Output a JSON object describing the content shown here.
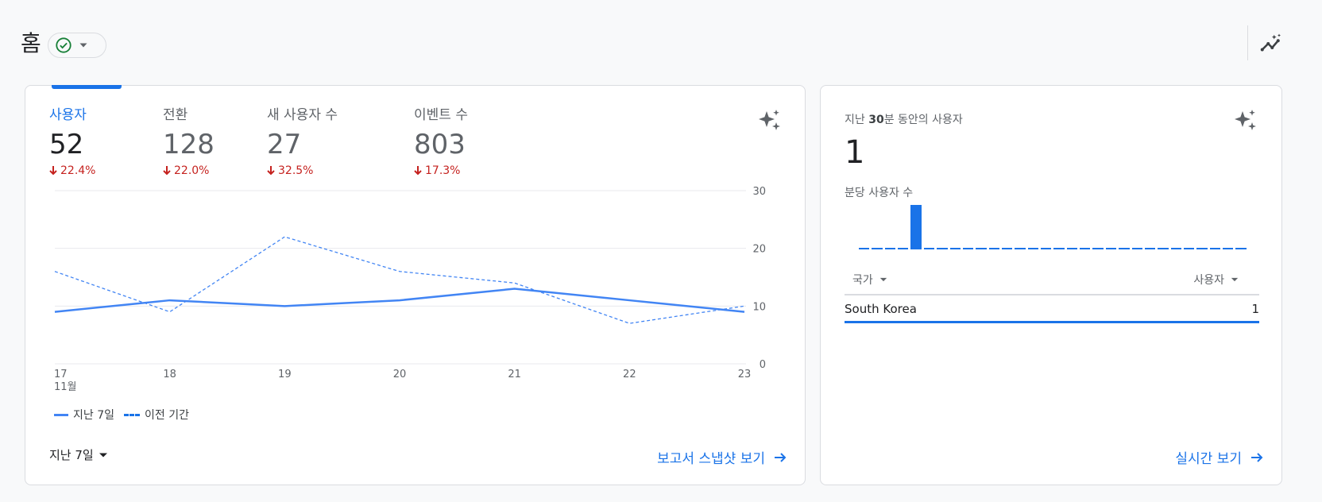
{
  "header": {
    "title": "홈"
  },
  "colors": {
    "accent": "#1a73e8",
    "negative": "#c5221f",
    "status_ok": "#188038"
  },
  "icons": {
    "status": "check-circle-icon",
    "chevron": "caret-down-icon",
    "insights": "insights-icon",
    "sparkle": "sparkle-icon",
    "arrow": "arrow-forward-icon",
    "delta": "arrow-down-icon"
  },
  "metrics": [
    {
      "label": "사용자",
      "value": "52",
      "delta": "22.4%",
      "active": true
    },
    {
      "label": "전환",
      "value": "128",
      "delta": "22.0%"
    },
    {
      "label": "새 사용자 수",
      "value": "27",
      "delta": "32.5%"
    },
    {
      "label": "이벤트 수",
      "value": "803",
      "delta": "17.3%"
    }
  ],
  "chart_data": {
    "type": "line",
    "x": [
      "17",
      "18",
      "19",
      "20",
      "21",
      "22",
      "23"
    ],
    "x_sublabel": "11월",
    "ylim": [
      0,
      30
    ],
    "y_ticks": [
      "0",
      "10",
      "20",
      "30"
    ],
    "y_axis_side": "right",
    "grid": true,
    "legend_placement": "bottom-left",
    "series": [
      {
        "name": "지난 7일",
        "style": "solid",
        "values": [
          9,
          11,
          10,
          11,
          13,
          11,
          9
        ]
      },
      {
        "name": "이전 기간",
        "style": "dashed",
        "values": [
          16,
          9,
          22,
          16,
          14,
          7,
          10
        ]
      }
    ]
  },
  "date_range": {
    "label": "지난 7일"
  },
  "snapshot_link": {
    "label": "보고서 스냅샷 보기"
  },
  "realtime": {
    "title_prefix": "지난 ",
    "title_bold": "30",
    "title_suffix": "분 동안의 사용자",
    "value": "1",
    "subtitle": "분당 사용자 수",
    "bars": [
      0,
      0,
      0,
      0,
      1,
      0,
      0,
      0,
      0,
      0,
      0,
      0,
      0,
      0,
      0,
      0,
      0,
      0,
      0,
      0,
      0,
      0,
      0,
      0,
      0,
      0,
      0,
      0,
      0,
      0
    ],
    "columns": {
      "country": "국가",
      "users": "사용자"
    },
    "rows": [
      {
        "country": "South Korea",
        "users": "1"
      }
    ],
    "link_label": "실시간 보기"
  }
}
